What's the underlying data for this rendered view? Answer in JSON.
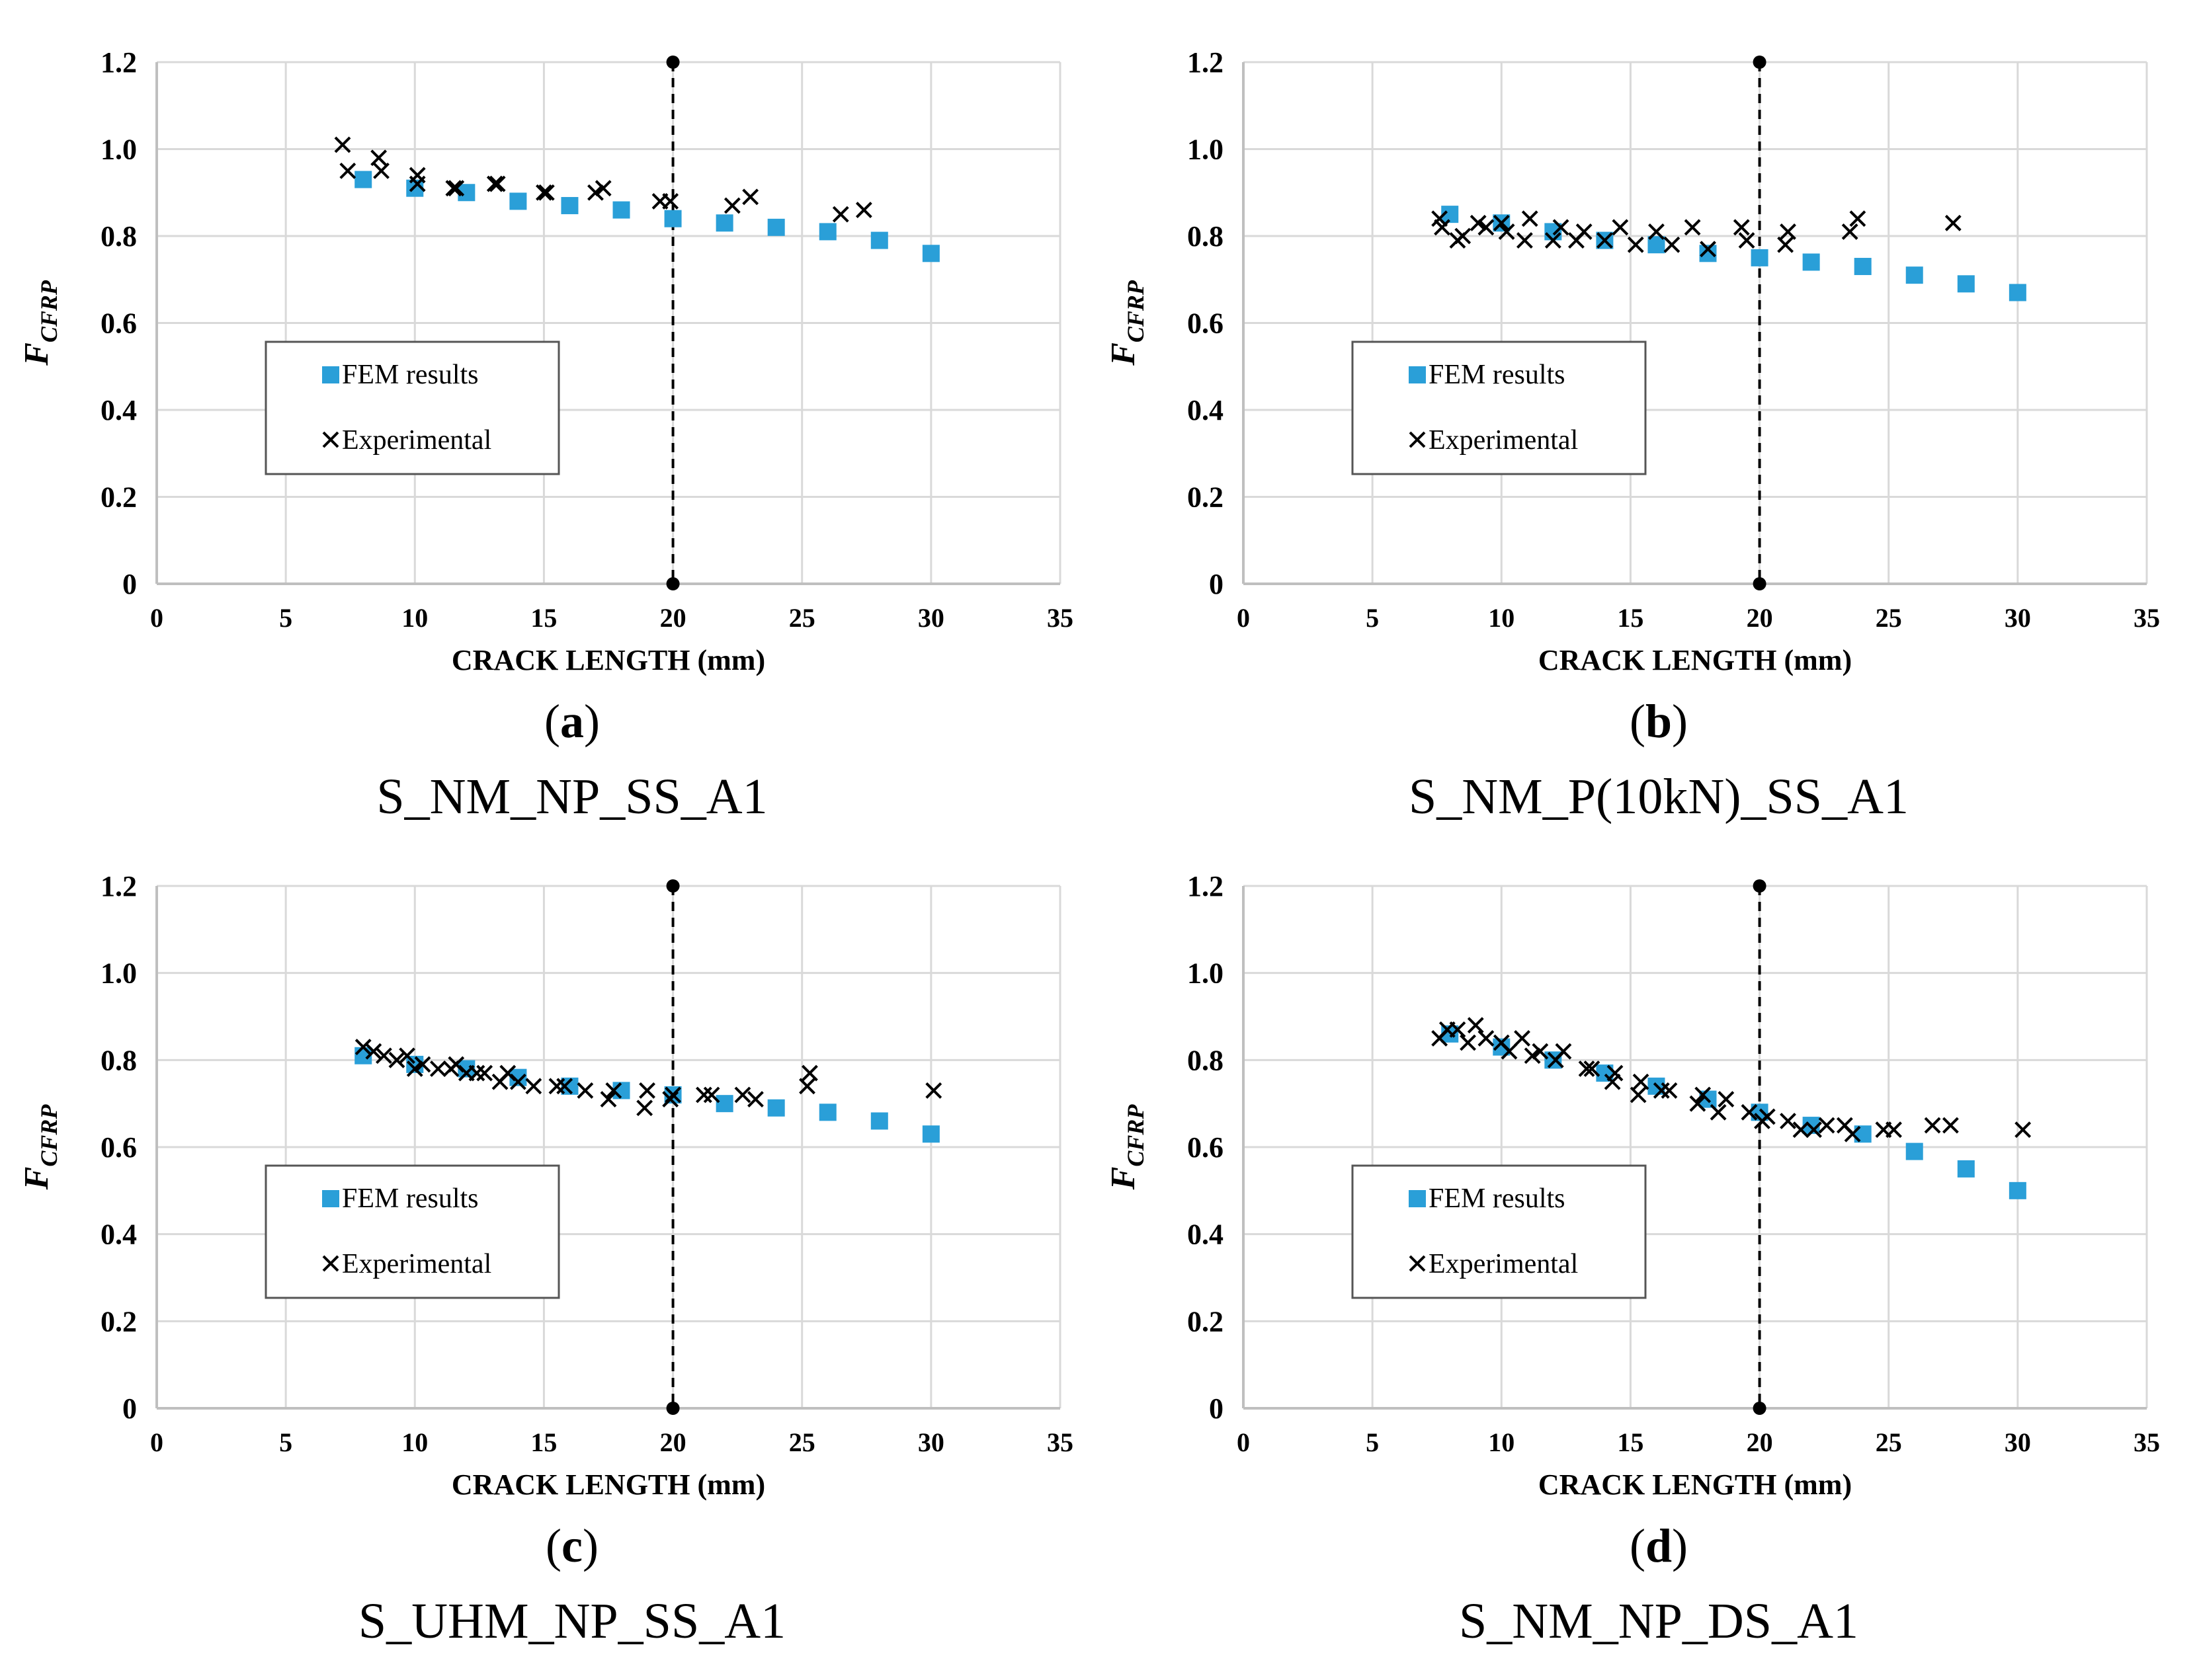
{
  "colors": {
    "fem": "#2A9FD8",
    "experimental": "#000000",
    "grid": "#D9D9D9",
    "axis": "#BFBFBF"
  },
  "chart_data": [
    {
      "type": "scatter",
      "panel_letter": "a",
      "specimen": "S_NM_NP_SS_A1",
      "xlabel": "CRACK LENGTH (mm)",
      "ylabel": "F",
      "ylabel_sub": "CFRP",
      "xlim": [
        0,
        35
      ],
      "ylim": [
        0,
        1.2
      ],
      "x_ticks": [
        "0",
        "5",
        "10",
        "15",
        "20",
        "25",
        "30",
        "35"
      ],
      "y_ticks": [
        "0",
        "0.2",
        "0.4",
        "0.6",
        "0.8",
        "1.0",
        "1.2"
      ],
      "grid": true,
      "reference_line_x": 20,
      "legend": {
        "fem": "FEM results",
        "experimental": "Experimental"
      },
      "series": [
        {
          "name": "FEM results",
          "marker": "square",
          "x": [
            8,
            10,
            12,
            14,
            16,
            18,
            20,
            22,
            24,
            26,
            28,
            30
          ],
          "y": [
            0.93,
            0.91,
            0.9,
            0.88,
            0.87,
            0.86,
            0.84,
            0.83,
            0.82,
            0.81,
            0.79,
            0.76
          ]
        },
        {
          "name": "Experimental",
          "marker": "cross",
          "x": [
            7.2,
            7.4,
            8.6,
            8.7,
            10.1,
            10.1,
            11.5,
            11.6,
            13.1,
            13.2,
            15.0,
            15.1,
            17.0,
            17.3,
            19.5,
            19.9,
            22.3,
            23.0,
            26.5,
            27.4
          ],
          "y": [
            1.01,
            0.95,
            0.98,
            0.95,
            0.94,
            0.92,
            0.91,
            0.91,
            0.92,
            0.92,
            0.9,
            0.9,
            0.9,
            0.91,
            0.88,
            0.88,
            0.87,
            0.89,
            0.85,
            0.86
          ]
        }
      ]
    },
    {
      "type": "scatter",
      "panel_letter": "b",
      "specimen": "S_NM_P(10kN)_SS_A1",
      "xlabel": "CRACK LENGTH (mm)",
      "ylabel": "F",
      "ylabel_sub": "CFRP",
      "xlim": [
        0,
        35
      ],
      "ylim": [
        0,
        1.2
      ],
      "x_ticks": [
        "0",
        "5",
        "10",
        "15",
        "20",
        "25",
        "30",
        "35"
      ],
      "y_ticks": [
        "0",
        "0.2",
        "0.4",
        "0.6",
        "0.8",
        "1.0",
        "1.2"
      ],
      "grid": true,
      "reference_line_x": 20,
      "legend": {
        "fem": "FEM results",
        "experimental": "Experimental"
      },
      "series": [
        {
          "name": "FEM results",
          "marker": "square",
          "x": [
            8,
            10,
            12,
            14,
            16,
            18,
            20,
            22,
            24,
            26,
            28,
            30
          ],
          "y": [
            0.85,
            0.83,
            0.81,
            0.79,
            0.78,
            0.76,
            0.75,
            0.74,
            0.73,
            0.71,
            0.69,
            0.67
          ]
        },
        {
          "name": "Experimental",
          "marker": "cross",
          "x": [
            7.6,
            7.7,
            8.3,
            8.5,
            9.1,
            9.4,
            10.0,
            10.2,
            10.9,
            11.1,
            12.0,
            12.3,
            12.9,
            13.2,
            14.0,
            14.6,
            15.2,
            16.0,
            16.6,
            17.4,
            18.0,
            19.3,
            19.5,
            21.0,
            21.1,
            23.5,
            23.8,
            27.5
          ],
          "y": [
            0.84,
            0.82,
            0.79,
            0.8,
            0.83,
            0.82,
            0.83,
            0.81,
            0.79,
            0.84,
            0.79,
            0.82,
            0.79,
            0.81,
            0.79,
            0.82,
            0.78,
            0.81,
            0.78,
            0.82,
            0.77,
            0.82,
            0.79,
            0.78,
            0.81,
            0.81,
            0.84,
            0.83
          ]
        }
      ]
    },
    {
      "type": "scatter",
      "panel_letter": "c",
      "specimen": "S_UHM_NP_SS_A1",
      "xlabel": "CRACK LENGTH (mm)",
      "ylabel": "F",
      "ylabel_sub": "CFRP",
      "xlim": [
        0,
        35
      ],
      "ylim": [
        0,
        1.2
      ],
      "x_ticks": [
        "0",
        "5",
        "10",
        "15",
        "20",
        "25",
        "30",
        "35"
      ],
      "y_ticks": [
        "0",
        "0.2",
        "0.4",
        "0.6",
        "0.8",
        "1.0",
        "1.2"
      ],
      "grid": true,
      "reference_line_x": 20,
      "legend": {
        "fem": "FEM results",
        "experimental": "Experimental"
      },
      "series": [
        {
          "name": "FEM results",
          "marker": "square",
          "x": [
            8,
            10,
            12,
            14,
            16,
            18,
            20,
            22,
            24,
            26,
            28,
            30
          ],
          "y": [
            0.81,
            0.79,
            0.78,
            0.76,
            0.74,
            0.73,
            0.72,
            0.7,
            0.69,
            0.68,
            0.66,
            0.63
          ]
        },
        {
          "name": "Experimental",
          "marker": "cross",
          "x": [
            8.0,
            8.4,
            8.8,
            9.3,
            9.7,
            10.0,
            10.3,
            10.9,
            11.4,
            11.6,
            12.0,
            12.4,
            12.7,
            13.3,
            13.6,
            14.0,
            14.6,
            15.5,
            15.8,
            16.6,
            17.5,
            17.7,
            18.9,
            19.0,
            19.9,
            20.0,
            21.2,
            21.5,
            22.7,
            23.2,
            25.2,
            25.3,
            30.1
          ],
          "y": [
            0.83,
            0.82,
            0.81,
            0.8,
            0.81,
            0.78,
            0.79,
            0.78,
            0.78,
            0.79,
            0.77,
            0.77,
            0.77,
            0.75,
            0.77,
            0.75,
            0.74,
            0.74,
            0.74,
            0.73,
            0.71,
            0.73,
            0.69,
            0.73,
            0.71,
            0.72,
            0.72,
            0.72,
            0.72,
            0.71,
            0.74,
            0.77,
            0.73
          ]
        }
      ]
    },
    {
      "type": "scatter",
      "panel_letter": "d",
      "specimen": "S_NM_NP_DS_A1",
      "xlabel": "CRACK LENGTH (mm)",
      "ylabel": "F",
      "ylabel_sub": "CFRP",
      "xlim": [
        0,
        35
      ],
      "ylim": [
        0,
        1.2
      ],
      "x_ticks": [
        "0",
        "5",
        "10",
        "15",
        "20",
        "25",
        "30",
        "35"
      ],
      "y_ticks": [
        "0",
        "0.2",
        "0.4",
        "0.6",
        "0.8",
        "1.0",
        "1.2"
      ],
      "grid": true,
      "reference_line_x": 20,
      "legend": {
        "fem": "FEM results",
        "experimental": "Experimental"
      },
      "series": [
        {
          "name": "FEM results",
          "marker": "square",
          "x": [
            8,
            10,
            12,
            14,
            16,
            18,
            20,
            22,
            24,
            26,
            28,
            30
          ],
          "y": [
            0.86,
            0.83,
            0.8,
            0.77,
            0.74,
            0.71,
            0.68,
            0.65,
            0.63,
            0.59,
            0.55,
            0.5
          ]
        },
        {
          "name": "Experimental",
          "marker": "cross",
          "x": [
            7.6,
            7.9,
            8.3,
            8.7,
            9.0,
            9.4,
            10.0,
            10.3,
            10.8,
            11.2,
            11.5,
            12.1,
            12.4,
            13.3,
            13.5,
            14.3,
            14.4,
            15.3,
            15.4,
            16.2,
            16.5,
            17.6,
            17.8,
            18.4,
            18.7,
            19.6,
            20.1,
            20.3,
            21.1,
            21.6,
            22.1,
            22.6,
            23.3,
            23.6,
            24.8,
            25.2,
            26.7,
            27.4,
            30.2
          ],
          "y": [
            0.85,
            0.87,
            0.87,
            0.84,
            0.88,
            0.85,
            0.84,
            0.82,
            0.85,
            0.81,
            0.82,
            0.8,
            0.82,
            0.78,
            0.78,
            0.75,
            0.77,
            0.72,
            0.75,
            0.73,
            0.73,
            0.7,
            0.72,
            0.68,
            0.71,
            0.68,
            0.66,
            0.67,
            0.66,
            0.64,
            0.64,
            0.65,
            0.65,
            0.63,
            0.64,
            0.64,
            0.65,
            0.65,
            0.64
          ]
        }
      ]
    }
  ]
}
